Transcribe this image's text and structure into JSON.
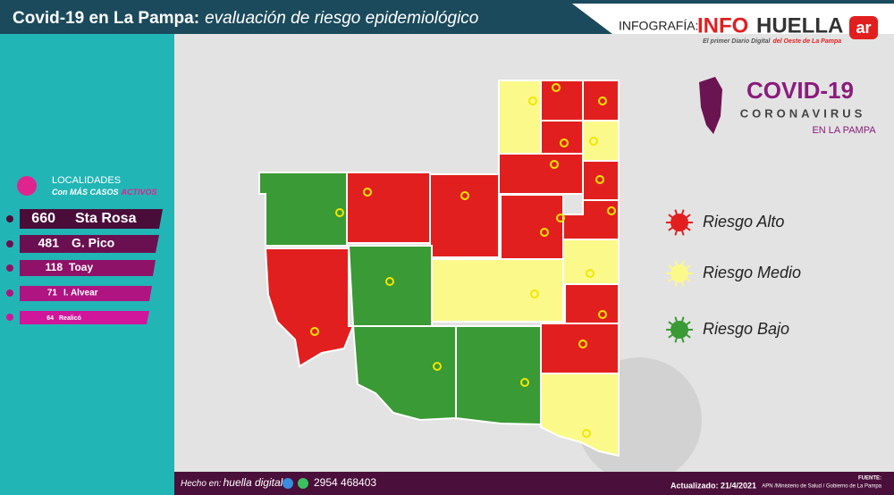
{
  "header": {
    "title_bold": "Covid-19 en La Pampa:",
    "title_italic": "evaluación de riesgo epidemiológico",
    "credit": "INFOGRAFÍA:",
    "brand_a": "INFO",
    "brand_b": "HUELLA",
    "brand_c": "ar",
    "tagline_a": "El primer Diario Digital",
    "tagline_b": "del Oeste de La Pampa"
  },
  "badge": {
    "title": "COVID-19",
    "subtitle": "CORONAVIRUS",
    "region": "EN LA PAMPA"
  },
  "ranking": {
    "title": "LOCALIDADES",
    "subtitle_a": "Con MÁS CASOS",
    "subtitle_b": "ACTIVOS",
    "items": [
      {
        "value": 660,
        "name": "Sta Rosa"
      },
      {
        "value": 481,
        "name": "G. Pico"
      },
      {
        "value": 118,
        "name": "Toay"
      },
      {
        "value": 71,
        "name": "I. Alvear"
      },
      {
        "value": 64,
        "name": "Realicó"
      }
    ]
  },
  "legend": [
    {
      "label": "Riesgo Alto",
      "color": "#e21f1f"
    },
    {
      "label": "Riesgo Medio",
      "color": "#fbf98a"
    },
    {
      "label": "Riesgo Bajo",
      "color": "#3a9a35"
    }
  ],
  "footer": {
    "made_in": "Hecho en:",
    "made_brand": "huella digital",
    "phone": "2954 468403",
    "updated": "Actualizado: 21/4/2021",
    "source_title": "FUENTE:",
    "source": "APN /Ministerio de Salud  / Gobierno de La Pampa"
  }
}
